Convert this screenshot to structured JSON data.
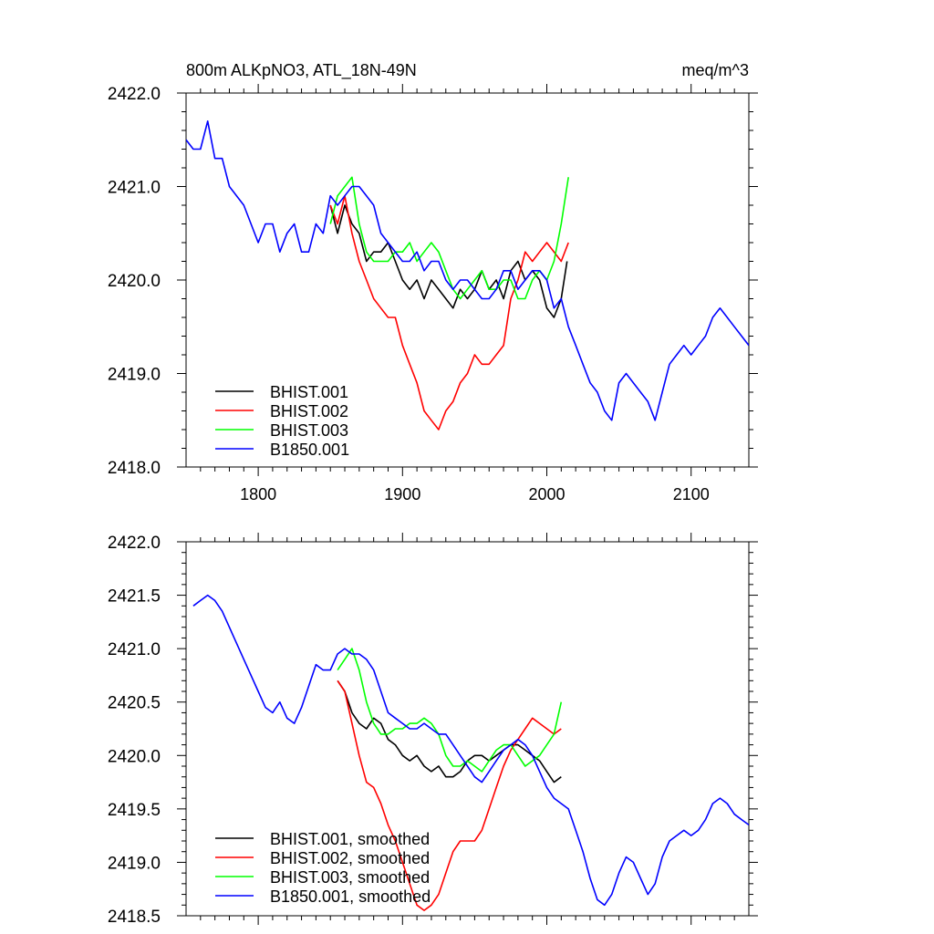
{
  "figure": {
    "title_left": "800m ALKpNO3, ATL_18N-49N",
    "title_right": "meq/m^3"
  },
  "chart_data": [
    {
      "type": "line",
      "xlim": [
        1750,
        2140
      ],
      "ylim": [
        2418.0,
        2422.0
      ],
      "xticks": [
        1800,
        1900,
        2000,
        2100
      ],
      "xtick_labels": [
        "1800",
        "1900",
        "2000",
        "2100"
      ],
      "yticks": [
        2418.0,
        2419.0,
        2420.0,
        2421.0,
        2422.0
      ],
      "ytick_labels": [
        "2418.0",
        "2419.0",
        "2420.0",
        "2421.0",
        "2422.0"
      ],
      "grid": false,
      "legend_position": "bottom-left",
      "series": [
        {
          "name": "BHIST.001",
          "color": "#000000",
          "x": [
            1850,
            1855,
            1860,
            1865,
            1870,
            1875,
            1880,
            1885,
            1890,
            1895,
            1900,
            1905,
            1910,
            1915,
            1920,
            1925,
            1930,
            1935,
            1940,
            1945,
            1950,
            1955,
            1960,
            1965,
            1970,
            1975,
            1980,
            1985,
            1990,
            1995,
            2000,
            2005,
            2010,
            2014
          ],
          "y": [
            2420.8,
            2420.5,
            2420.8,
            2420.6,
            2420.5,
            2420.2,
            2420.3,
            2420.3,
            2420.4,
            2420.2,
            2420.0,
            2419.9,
            2420.0,
            2419.8,
            2420.0,
            2419.9,
            2419.8,
            2419.7,
            2419.9,
            2419.8,
            2419.9,
            2420.1,
            2419.9,
            2420.0,
            2419.8,
            2420.1,
            2420.2,
            2420.0,
            2420.1,
            2420.0,
            2419.7,
            2419.6,
            2419.8,
            2420.2
          ]
        },
        {
          "name": "BHIST.002",
          "color": "#ff0000",
          "x": [
            1850,
            1855,
            1860,
            1865,
            1870,
            1875,
            1880,
            1885,
            1890,
            1895,
            1900,
            1905,
            1910,
            1915,
            1920,
            1925,
            1930,
            1935,
            1940,
            1945,
            1950,
            1955,
            1960,
            1965,
            1970,
            1975,
            1980,
            1985,
            1990,
            1995,
            2000,
            2005,
            2010,
            2015
          ],
          "y": [
            2420.8,
            2420.6,
            2420.9,
            2420.5,
            2420.2,
            2420.0,
            2419.8,
            2419.7,
            2419.6,
            2419.6,
            2419.3,
            2419.1,
            2418.9,
            2418.6,
            2418.5,
            2418.4,
            2418.6,
            2418.7,
            2418.9,
            2419.0,
            2419.2,
            2419.1,
            2419.1,
            2419.2,
            2419.3,
            2419.8,
            2420.0,
            2420.3,
            2420.2,
            2420.3,
            2420.4,
            2420.3,
            2420.2,
            2420.4
          ]
        },
        {
          "name": "BHIST.003",
          "color": "#00ff00",
          "x": [
            1850,
            1855,
            1860,
            1865,
            1870,
            1875,
            1880,
            1885,
            1890,
            1895,
            1900,
            1905,
            1910,
            1915,
            1920,
            1925,
            1930,
            1935,
            1940,
            1945,
            1950,
            1955,
            1960,
            1965,
            1970,
            1975,
            1980,
            1985,
            1990,
            1995,
            2000,
            2005,
            2010,
            2015
          ],
          "y": [
            2420.6,
            2420.9,
            2421.0,
            2421.1,
            2420.6,
            2420.3,
            2420.2,
            2420.2,
            2420.2,
            2420.3,
            2420.3,
            2420.4,
            2420.2,
            2420.3,
            2420.4,
            2420.3,
            2420.1,
            2419.9,
            2419.8,
            2419.9,
            2420.0,
            2420.1,
            2419.9,
            2419.9,
            2420.0,
            2420.0,
            2419.8,
            2419.8,
            2420.0,
            2420.1,
            2420.0,
            2420.2,
            2420.6,
            2421.1
          ]
        },
        {
          "name": "B1850.001",
          "color": "#0000ff",
          "x": [
            1750,
            1755,
            1760,
            1765,
            1770,
            1775,
            1780,
            1785,
            1790,
            1795,
            1800,
            1805,
            1810,
            1815,
            1820,
            1825,
            1830,
            1835,
            1840,
            1845,
            1850,
            1855,
            1860,
            1865,
            1870,
            1875,
            1880,
            1885,
            1890,
            1895,
            1900,
            1905,
            1910,
            1915,
            1920,
            1925,
            1930,
            1935,
            1940,
            1945,
            1950,
            1955,
            1960,
            1965,
            1970,
            1975,
            1980,
            1985,
            1990,
            1995,
            2000,
            2005,
            2010,
            2015,
            2020,
            2025,
            2030,
            2035,
            2040,
            2045,
            2050,
            2055,
            2060,
            2065,
            2070,
            2075,
            2080,
            2085,
            2090,
            2095,
            2100,
            2105,
            2110,
            2115,
            2120,
            2125,
            2130,
            2135,
            2140
          ],
          "y": [
            2421.5,
            2421.4,
            2421.4,
            2421.7,
            2421.3,
            2421.3,
            2421.0,
            2420.9,
            2420.8,
            2420.6,
            2420.4,
            2420.6,
            2420.6,
            2420.3,
            2420.5,
            2420.6,
            2420.3,
            2420.3,
            2420.6,
            2420.5,
            2420.9,
            2420.8,
            2420.9,
            2421.0,
            2421.0,
            2420.9,
            2420.8,
            2420.5,
            2420.4,
            2420.3,
            2420.2,
            2420.2,
            2420.3,
            2420.1,
            2420.2,
            2420.2,
            2420.0,
            2419.9,
            2420.0,
            2420.0,
            2419.9,
            2419.8,
            2419.8,
            2419.9,
            2420.1,
            2420.1,
            2419.9,
            2420.0,
            2420.1,
            2420.1,
            2420.0,
            2419.7,
            2419.8,
            2419.5,
            2419.3,
            2419.1,
            2418.9,
            2418.8,
            2418.6,
            2418.5,
            2418.9,
            2419.0,
            2418.9,
            2418.8,
            2418.7,
            2418.5,
            2418.8,
            2419.1,
            2419.2,
            2419.3,
            2419.2,
            2419.3,
            2419.4,
            2419.6,
            2419.7,
            2419.6,
            2419.5,
            2419.4,
            2419.3
          ]
        }
      ]
    },
    {
      "type": "line",
      "xlim": [
        1750,
        2140
      ],
      "ylim": [
        2418.5,
        2422.0
      ],
      "xticks": [
        1800,
        1900,
        2000,
        2100
      ],
      "xtick_labels": [],
      "yticks": [
        2418.5,
        2419.0,
        2419.5,
        2420.0,
        2420.5,
        2421.0,
        2421.5,
        2422.0
      ],
      "ytick_labels": [
        "2418.5",
        "2419.0",
        "2419.5",
        "2420.0",
        "2420.5",
        "2421.0",
        "2421.5",
        "2422.0"
      ],
      "grid": false,
      "legend_position": "bottom-left",
      "series": [
        {
          "name": "BHIST.001, smoothed",
          "color": "#000000",
          "x": [
            1855,
            1860,
            1865,
            1870,
            1875,
            1880,
            1885,
            1890,
            1895,
            1900,
            1905,
            1910,
            1915,
            1920,
            1925,
            1930,
            1935,
            1940,
            1945,
            1950,
            1955,
            1960,
            1965,
            1970,
            1975,
            1980,
            1985,
            1990,
            1995,
            2000,
            2005,
            2010
          ],
          "y": [
            2420.7,
            2420.6,
            2420.4,
            2420.3,
            2420.25,
            2420.35,
            2420.3,
            2420.15,
            2420.1,
            2420.0,
            2419.95,
            2420.0,
            2419.9,
            2419.85,
            2419.9,
            2419.8,
            2419.8,
            2419.85,
            2419.95,
            2420.0,
            2420.0,
            2419.95,
            2420.0,
            2420.05,
            2420.1,
            2420.1,
            2420.05,
            2420.0,
            2419.95,
            2419.85,
            2419.75,
            2419.8
          ]
        },
        {
          "name": "BHIST.002, smoothed",
          "color": "#ff0000",
          "x": [
            1855,
            1860,
            1865,
            1870,
            1875,
            1880,
            1885,
            1890,
            1895,
            1900,
            1905,
            1910,
            1915,
            1920,
            1925,
            1930,
            1935,
            1940,
            1945,
            1950,
            1955,
            1960,
            1965,
            1970,
            1975,
            1980,
            1985,
            1990,
            1995,
            2000,
            2005,
            2010
          ],
          "y": [
            2420.7,
            2420.6,
            2420.3,
            2420.0,
            2419.75,
            2419.7,
            2419.55,
            2419.35,
            2419.2,
            2419.0,
            2418.8,
            2418.6,
            2418.55,
            2418.6,
            2418.7,
            2418.9,
            2419.1,
            2419.2,
            2419.2,
            2419.2,
            2419.3,
            2419.5,
            2419.7,
            2419.9,
            2420.05,
            2420.15,
            2420.25,
            2420.35,
            2420.3,
            2420.25,
            2420.2,
            2420.25
          ]
        },
        {
          "name": "BHIST.003, smoothed",
          "color": "#00ff00",
          "x": [
            1855,
            1860,
            1865,
            1870,
            1875,
            1880,
            1885,
            1890,
            1895,
            1900,
            1905,
            1910,
            1915,
            1920,
            1925,
            1930,
            1935,
            1940,
            1945,
            1950,
            1955,
            1960,
            1965,
            1970,
            1975,
            1980,
            1985,
            1990,
            1995,
            2000,
            2005,
            2010
          ],
          "y": [
            2420.8,
            2420.9,
            2421.0,
            2420.8,
            2420.5,
            2420.3,
            2420.2,
            2420.2,
            2420.25,
            2420.25,
            2420.3,
            2420.3,
            2420.35,
            2420.3,
            2420.2,
            2420.0,
            2419.9,
            2419.9,
            2419.95,
            2419.9,
            2419.85,
            2419.95,
            2420.05,
            2420.1,
            2420.1,
            2420.0,
            2419.9,
            2419.95,
            2420.0,
            2420.1,
            2420.2,
            2420.5
          ]
        },
        {
          "name": "B1850.001, smoothed",
          "color": "#0000ff",
          "x": [
            1755,
            1760,
            1765,
            1770,
            1775,
            1780,
            1785,
            1790,
            1795,
            1800,
            1805,
            1810,
            1815,
            1820,
            1825,
            1830,
            1835,
            1840,
            1845,
            1850,
            1855,
            1860,
            1865,
            1870,
            1875,
            1880,
            1885,
            1890,
            1895,
            1900,
            1905,
            1910,
            1915,
            1920,
            1925,
            1930,
            1935,
            1940,
            1945,
            1950,
            1955,
            1960,
            1965,
            1970,
            1975,
            1980,
            1985,
            1990,
            1995,
            2000,
            2005,
            2010,
            2015,
            2020,
            2025,
            2030,
            2035,
            2040,
            2045,
            2050,
            2055,
            2060,
            2065,
            2070,
            2075,
            2080,
            2085,
            2090,
            2095,
            2100,
            2105,
            2110,
            2115,
            2120,
            2125,
            2130,
            2135,
            2140
          ],
          "y": [
            2421.4,
            2421.45,
            2421.5,
            2421.45,
            2421.35,
            2421.2,
            2421.05,
            2420.9,
            2420.75,
            2420.6,
            2420.45,
            2420.4,
            2420.5,
            2420.35,
            2420.3,
            2420.45,
            2420.65,
            2420.85,
            2420.8,
            2420.8,
            2420.95,
            2421.0,
            2420.95,
            2420.95,
            2420.9,
            2420.8,
            2420.6,
            2420.4,
            2420.35,
            2420.3,
            2420.25,
            2420.25,
            2420.3,
            2420.25,
            2420.2,
            2420.2,
            2420.1,
            2420.0,
            2419.9,
            2419.8,
            2419.75,
            2419.85,
            2419.95,
            2420.05,
            2420.1,
            2420.15,
            2420.1,
            2420.0,
            2419.85,
            2419.7,
            2419.6,
            2419.55,
            2419.5,
            2419.3,
            2419.1,
            2418.85,
            2418.65,
            2418.6,
            2418.7,
            2418.9,
            2419.05,
            2419.0,
            2418.85,
            2418.7,
            2418.8,
            2419.05,
            2419.2,
            2419.25,
            2419.3,
            2419.25,
            2419.3,
            2419.4,
            2419.55,
            2419.6,
            2419.55,
            2419.45,
            2419.4,
            2419.35
          ]
        }
      ]
    }
  ]
}
